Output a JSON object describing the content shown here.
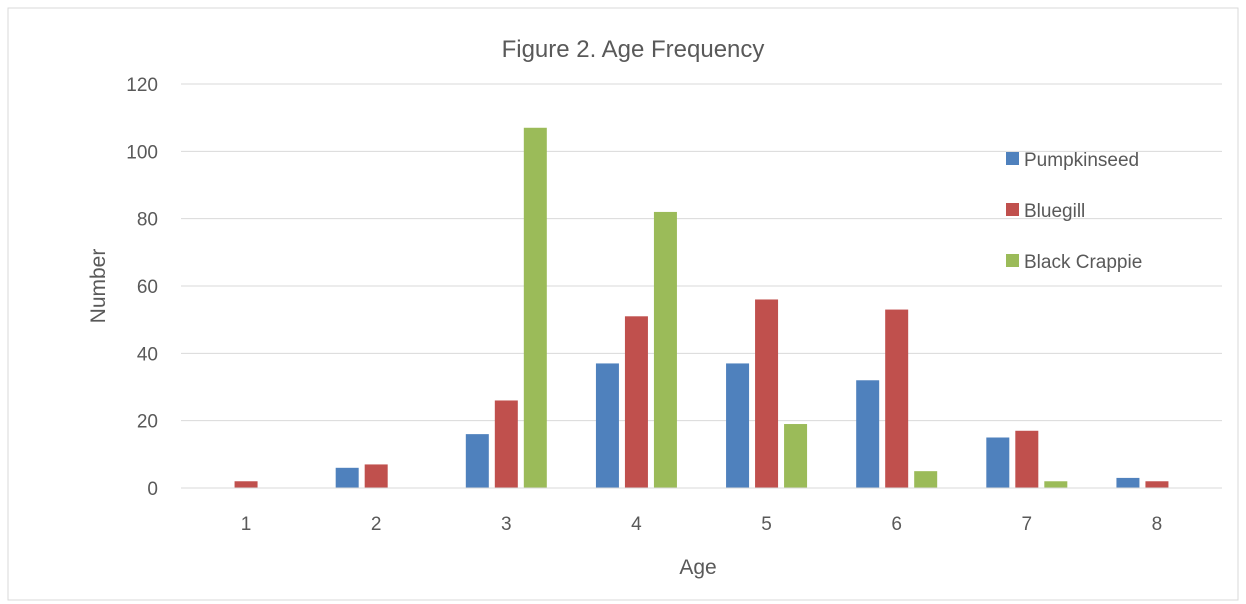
{
  "chart_data": {
    "type": "bar",
    "title": "Figure 2. Age Frequency",
    "xlabel": "Age",
    "ylabel": "Number",
    "categories": [
      "1",
      "2",
      "3",
      "4",
      "5",
      "6",
      "7",
      "8"
    ],
    "ylim": [
      0,
      120
    ],
    "yticks": [
      0,
      20,
      40,
      60,
      80,
      100,
      120
    ],
    "grid": true,
    "legend_position": "top-right",
    "series": [
      {
        "name": "Pumpkinseed",
        "color": "#4f81bd",
        "values": [
          0,
          6,
          16,
          37,
          37,
          32,
          15,
          3
        ]
      },
      {
        "name": "Bluegill",
        "color": "#c0504d",
        "values": [
          2,
          7,
          26,
          51,
          56,
          53,
          17,
          2
        ]
      },
      {
        "name": "Black Crappie",
        "color": "#9bbb59",
        "values": [
          0,
          0,
          107,
          82,
          19,
          5,
          2,
          0
        ]
      }
    ]
  }
}
